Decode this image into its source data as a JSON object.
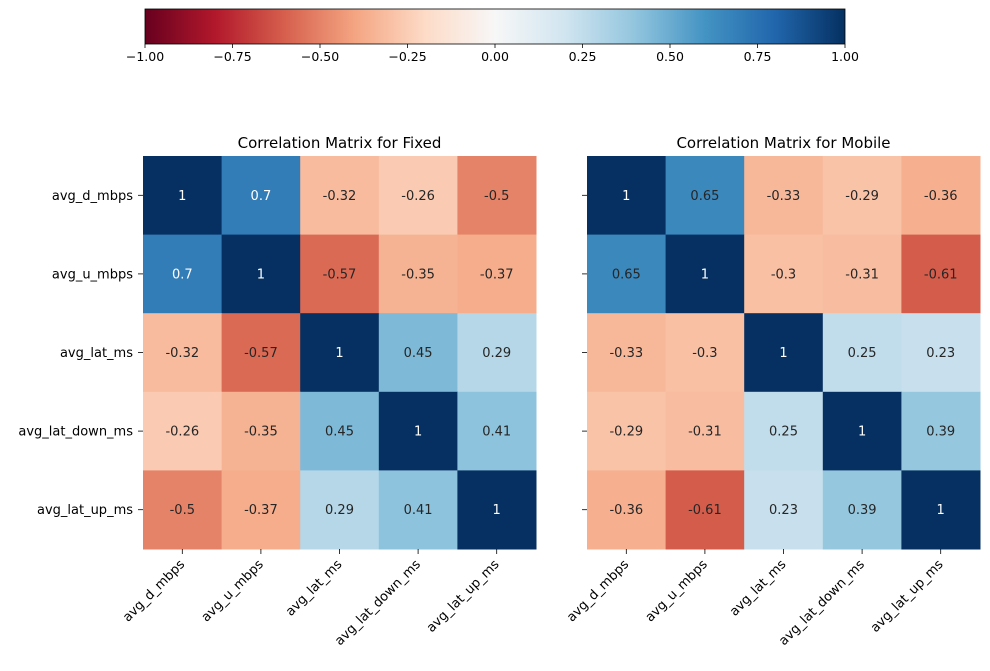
{
  "chart_data": {
    "type": "heatmap",
    "colorbar": {
      "colormap": "RdBu",
      "vmin": -1.0,
      "vmax": 1.0,
      "orientation": "horizontal",
      "placement": "top",
      "ticks": [
        -1.0,
        -0.75,
        -0.5,
        -0.25,
        0.0,
        0.25,
        0.5,
        0.75,
        1.0
      ],
      "tick_labels": [
        "−1.00",
        "−0.75",
        "−0.50",
        "−0.25",
        "0.00",
        "0.25",
        "0.50",
        "0.75",
        "1.00"
      ]
    },
    "panels": [
      {
        "title": "Correlation Matrix for Fixed",
        "rows": [
          "avg_d_mbps",
          "avg_u_mbps",
          "avg_lat_ms",
          "avg_lat_down_ms",
          "avg_lat_up_ms"
        ],
        "columns": [
          "avg_d_mbps",
          "avg_u_mbps",
          "avg_lat_ms",
          "avg_lat_down_ms",
          "avg_lat_up_ms"
        ],
        "show_row_labels": true,
        "values": [
          [
            1,
            0.7,
            -0.32,
            -0.26,
            -0.5
          ],
          [
            0.7,
            1,
            -0.57,
            -0.35,
            -0.37
          ],
          [
            -0.32,
            -0.57,
            1,
            0.45,
            0.29
          ],
          [
            -0.26,
            -0.35,
            0.45,
            1,
            0.41
          ],
          [
            -0.5,
            -0.37,
            0.29,
            0.41,
            1
          ]
        ]
      },
      {
        "title": "Correlation Matrix for Mobile",
        "rows": [
          "avg_d_mbps",
          "avg_u_mbps",
          "avg_lat_ms",
          "avg_lat_down_ms",
          "avg_lat_up_ms"
        ],
        "columns": [
          "avg_d_mbps",
          "avg_u_mbps",
          "avg_lat_ms",
          "avg_lat_down_ms",
          "avg_lat_up_ms"
        ],
        "show_row_labels": false,
        "values": [
          [
            1,
            0.65,
            -0.33,
            -0.29,
            -0.36
          ],
          [
            0.65,
            1,
            -0.3,
            -0.31,
            -0.61
          ],
          [
            -0.33,
            -0.3,
            1,
            0.25,
            0.23
          ],
          [
            -0.29,
            -0.31,
            0.25,
            1,
            0.39
          ],
          [
            -0.36,
            -0.61,
            0.23,
            0.39,
            1
          ]
        ]
      }
    ]
  }
}
